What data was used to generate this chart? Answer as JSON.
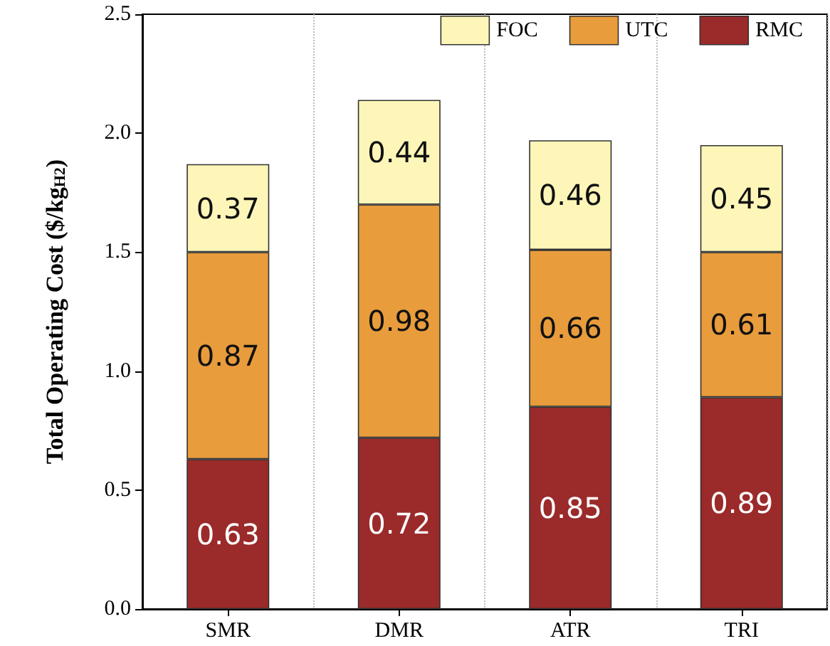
{
  "chart_data": {
    "type": "bar",
    "stacked": true,
    "ylabel": "Total Operating Cost ($/kg$_{H2}$)",
    "categories": [
      "SMR",
      "DMR",
      "ATR",
      "TRI"
    ],
    "series": [
      {
        "name": "RMC",
        "color": "#9b2a2a",
        "values": [
          0.63,
          0.72,
          0.85,
          0.89
        ]
      },
      {
        "name": "UTC",
        "color": "#e89c3c",
        "values": [
          0.87,
          0.98,
          0.66,
          0.61
        ]
      },
      {
        "name": "FOC",
        "color": "#fdf6b8",
        "values": [
          0.37,
          0.44,
          0.46,
          0.45
        ]
      }
    ],
    "ylim": [
      0,
      2.5
    ],
    "yticks": [
      {
        "value": 0,
        "label": "0.0"
      },
      0.5,
      {
        "value": 1,
        "label": "1.0"
      },
      1.5,
      {
        "value": 2,
        "label": "2.0"
      },
      2.5
    ],
    "data_labels": true,
    "legend": "top right",
    "grid": "x"
  }
}
